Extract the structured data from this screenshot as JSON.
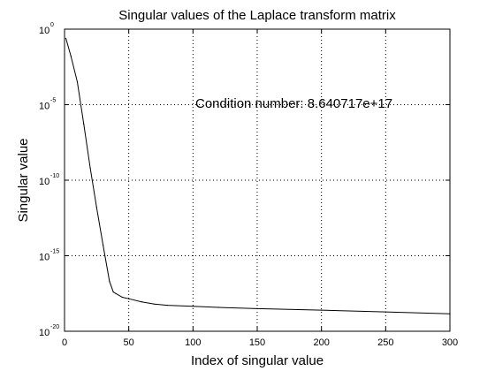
{
  "chart_data": {
    "type": "line",
    "title": "Singular values of the Laplace transform matrix",
    "xlabel": "Index of singular value",
    "ylabel": "Singular value",
    "annotation": "Condition number: 8.640717e+17",
    "xlim": [
      0,
      300
    ],
    "ylim_exponent": [
      -20,
      0
    ],
    "yscale": "log",
    "grid": true,
    "x_ticks": [
      0,
      50,
      100,
      150,
      200,
      250,
      300
    ],
    "y_tick_base": "10",
    "y_tick_exponents": [
      "0",
      "-5",
      "-10",
      "-15",
      "-20"
    ],
    "line_color": "#000000",
    "series": [
      {
        "x": [
          1,
          5,
          10,
          15,
          20,
          25,
          30,
          35,
          38,
          40,
          45,
          50,
          60,
          70,
          80,
          100,
          120,
          150,
          200,
          250,
          300
        ],
        "log10_y": [
          -0.6,
          -1.8,
          -3.5,
          -6.3,
          -9.2,
          -11.8,
          -14.3,
          -16.7,
          -17.4,
          -17.5,
          -17.75,
          -17.85,
          -18.05,
          -18.2,
          -18.28,
          -18.35,
          -18.42,
          -18.5,
          -18.6,
          -18.72,
          -18.85
        ]
      }
    ]
  }
}
